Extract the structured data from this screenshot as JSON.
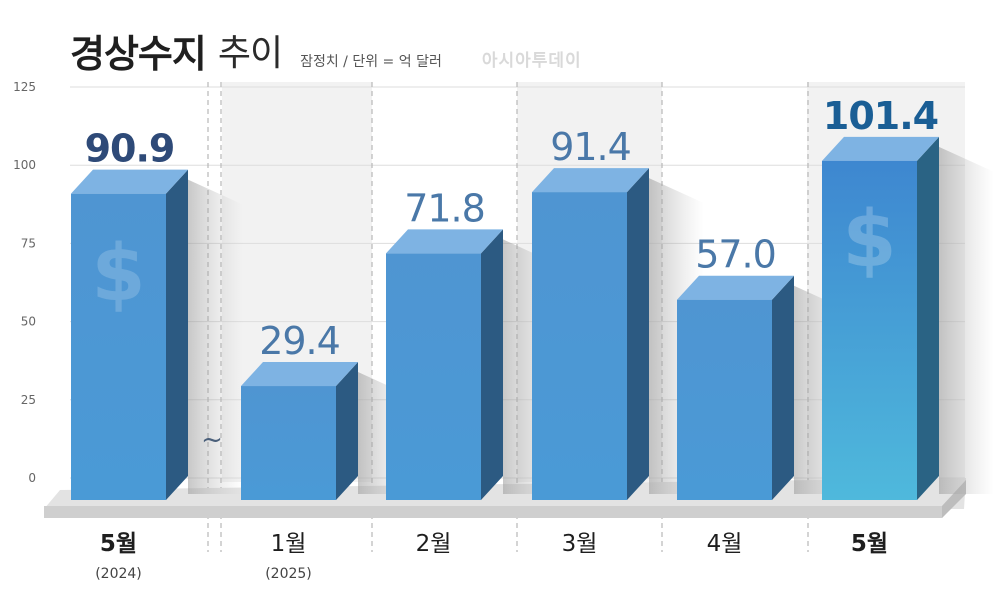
{
  "title": {
    "main": "경상수지",
    "suffix": "추이",
    "note": "잠정치 / 단위 = 억 달러"
  },
  "brand": "아시아투데이",
  "chart_data": {
    "type": "bar",
    "title": "경상수지 추이",
    "unit": "억 달러",
    "ylim": [
      0,
      125
    ],
    "yticks": [
      0,
      25,
      50,
      75,
      100,
      125
    ],
    "grid": true,
    "break_marker": "~",
    "currency_symbol": "$",
    "categories": [
      "5월",
      "1월",
      "2월",
      "3월",
      "4월",
      "5월"
    ],
    "sublabels": [
      "(2024)",
      "(2025)",
      "",
      "",
      "",
      ""
    ],
    "values": [
      90.9,
      29.4,
      71.8,
      91.4,
      57.0,
      101.4
    ],
    "value_labels": [
      "90.9",
      "29.4",
      "71.8",
      "91.4",
      "57.0",
      "101.4"
    ],
    "colors": {
      "bar": "#4f95d2",
      "bar_side": "#2c5a82",
      "bar_top": "#7eb3e3",
      "highlight_bar_top": "#3e87d0",
      "highlight_bar_bottom": "#4fb9dc",
      "highlight_side": "#2a6384",
      "value_text": "#4a78a8",
      "value_text_bold": "#2e4a78",
      "highlight_value_text": "#1a5e95",
      "axis_text": "#666666",
      "grid": "#dddddd",
      "band": "#f2f2f2",
      "floor": "#d6d6d6"
    }
  }
}
